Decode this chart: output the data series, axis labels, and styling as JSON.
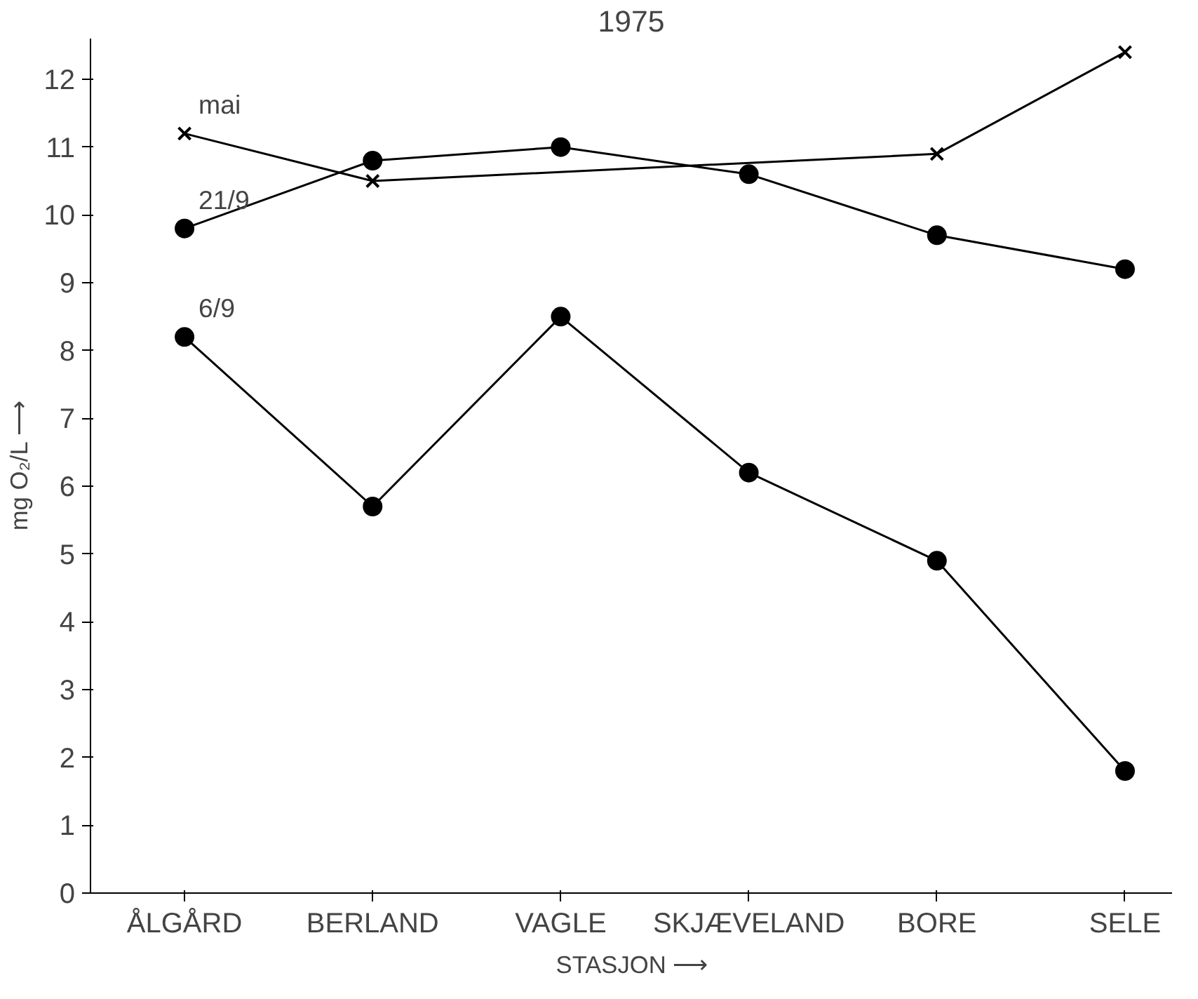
{
  "chart_data": {
    "type": "line",
    "title": "1975",
    "xlabel": "STASJON ⟶",
    "ylabel": "mg O₂/L ⟶",
    "categories": [
      "ÅLGÅRD",
      "BERLAND",
      "VAGLE",
      "SKJÆVELAND",
      "BORE",
      "SELE"
    ],
    "series": [
      {
        "name": "mai",
        "color": "#000000",
        "marker": "cross",
        "values": [
          11.2,
          10.5,
          null,
          null,
          10.9,
          12.4
        ]
      },
      {
        "name": "21/9",
        "color": "#000000",
        "marker": "circle",
        "values": [
          9.8,
          10.8,
          11.0,
          10.6,
          9.7,
          9.2
        ]
      },
      {
        "name": "6/9",
        "color": "#000000",
        "marker": "circle",
        "values": [
          8.2,
          5.7,
          8.5,
          6.2,
          4.9,
          1.8
        ]
      }
    ],
    "ylim": [
      0,
      12.6
    ],
    "yticks": [
      0,
      1,
      2,
      3,
      4,
      5,
      6,
      7,
      8,
      9,
      10,
      11,
      12
    ],
    "grid": false
  }
}
